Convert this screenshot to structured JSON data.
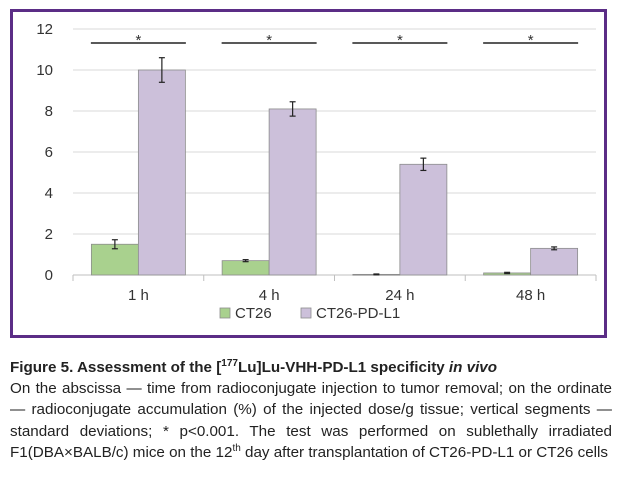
{
  "chart_data": {
    "type": "bar",
    "categories": [
      "1 h",
      "4 h",
      "24 h",
      "48 h"
    ],
    "series": [
      {
        "name": "CT26",
        "color": "#a9d18e",
        "values": [
          1.5,
          0.7,
          0.03,
          0.1
        ],
        "errors": [
          0.22,
          0.05,
          0.02,
          0.03
        ]
      },
      {
        "name": "CT26-PD-L1",
        "color": "#ccc0da",
        "values": [
          10.0,
          8.1,
          5.4,
          1.3
        ],
        "errors": [
          0.6,
          0.35,
          0.3,
          0.07
        ]
      }
    ],
    "ylim": [
      0,
      12
    ],
    "yticks": [
      0,
      2,
      4,
      6,
      8,
      10,
      12
    ],
    "significance": [
      "*",
      "*",
      "*",
      "*"
    ],
    "grid": true,
    "legend_position": "bottom"
  },
  "caption": {
    "title_prefix": "Figure 5. Assessment of the [",
    "title_sup": "177",
    "title_mid": "Lu]Lu-VHH-PD-L1 specificity ",
    "title_italic": "in vivo",
    "body_1": "On the abscissa — time from radioconjugate injection to tumor removal; on the ordinate — radioconjugate accumulation (%) of the injected dose/g tissue; vertical segments — standard deviations; * p<0.001. The test was performed on sublethally irradiated F1(DBA×BALB/c) mice on the 12",
    "body_sup": "th",
    "body_2": " day after transplantation of CT26-PD-L1 or CT26 cells"
  },
  "colors": {
    "frame": "#5b2d86",
    "grid": "#d9d9d9",
    "axis": "#bfbfbf"
  }
}
